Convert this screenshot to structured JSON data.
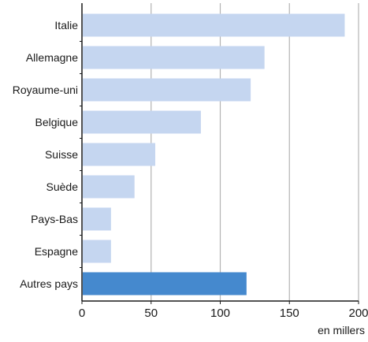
{
  "chart_data": {
    "type": "bar",
    "orientation": "horizontal",
    "categories": [
      "Italie",
      "Allemagne",
      "Royaume-uni",
      "Belgique",
      "Suisse",
      "Suède",
      "Pays-Bas",
      "Espagne",
      "Autres pays"
    ],
    "values": [
      190,
      132,
      122,
      86,
      53,
      38,
      21,
      21,
      119
    ],
    "highlight_category": "Autres pays",
    "unit_label": "en millers",
    "xlim": [
      0,
      200
    ],
    "xticks": [
      0,
      50,
      100,
      150,
      200
    ],
    "grid": true,
    "colors": {
      "bar": "#c5d6f0",
      "highlight": "#4589ce",
      "grid": "#b3b3b3",
      "axis": "#1a1a1a"
    }
  }
}
